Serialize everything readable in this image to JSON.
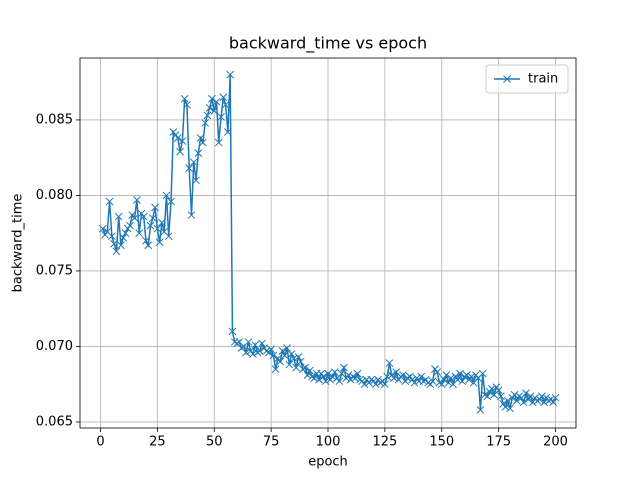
{
  "chart_data": {
    "type": "line",
    "title": "backward_time vs epoch",
    "x_label": "epoch",
    "y_label": "backward_time",
    "xlim": [
      -9,
      209
    ],
    "xticks": [
      0,
      25,
      50,
      75,
      100,
      125,
      150,
      175,
      200
    ],
    "ylim": [
      0.0646,
      0.0891
    ],
    "yticks": [
      0.065,
      {
        "value": 0.07,
        "label": "0.070"
      },
      0.075,
      {
        "value": 0.08,
        "label": "0.080"
      },
      0.085
    ],
    "grid": true,
    "legend": "upper right",
    "x": [
      1,
      2,
      3,
      4,
      5,
      6,
      7,
      8,
      9,
      10,
      11,
      12,
      13,
      14,
      15,
      16,
      17,
      18,
      19,
      20,
      21,
      22,
      23,
      24,
      25,
      26,
      27,
      28,
      29,
      30,
      31,
      32,
      33,
      34,
      35,
      36,
      37,
      38,
      39,
      40,
      41,
      42,
      43,
      44,
      45,
      46,
      47,
      48,
      49,
      50,
      51,
      52,
      53,
      54,
      55,
      56,
      57,
      58,
      59,
      60,
      61,
      62,
      63,
      64,
      65,
      66,
      67,
      68,
      69,
      70,
      71,
      72,
      73,
      74,
      75,
      76,
      77,
      78,
      79,
      80,
      81,
      82,
      83,
      84,
      85,
      86,
      87,
      88,
      89,
      90,
      91,
      92,
      93,
      94,
      95,
      96,
      97,
      98,
      99,
      100,
      101,
      102,
      103,
      104,
      105,
      106,
      107,
      108,
      109,
      110,
      111,
      112,
      113,
      114,
      115,
      116,
      117,
      118,
      119,
      120,
      121,
      122,
      123,
      124,
      125,
      126,
      127,
      128,
      129,
      130,
      131,
      132,
      133,
      134,
      135,
      136,
      137,
      138,
      139,
      140,
      141,
      142,
      143,
      144,
      145,
      146,
      147,
      148,
      149,
      150,
      151,
      152,
      153,
      154,
      155,
      156,
      157,
      158,
      159,
      160,
      161,
      162,
      163,
      164,
      165,
      166,
      167,
      168,
      169,
      170,
      171,
      172,
      173,
      174,
      175,
      176,
      177,
      178,
      179,
      180,
      181,
      182,
      183,
      184,
      185,
      186,
      187,
      188,
      189,
      190,
      191,
      192,
      193,
      194,
      195,
      196,
      197,
      198,
      199,
      200
    ],
    "series": [
      {
        "name": "train",
        "color": "#1f77b4",
        "values": [
          0.0778,
          0.0774,
          0.0776,
          0.0796,
          0.0773,
          0.0768,
          0.0763,
          0.0786,
          0.0767,
          0.0772,
          0.0775,
          0.0778,
          0.078,
          0.0787,
          0.0785,
          0.0797,
          0.0775,
          0.0788,
          0.0786,
          0.077,
          0.0767,
          0.078,
          0.0785,
          0.0792,
          0.0778,
          0.0769,
          0.0782,
          0.0776,
          0.08,
          0.0773,
          0.0796,
          0.0842,
          0.084,
          0.0838,
          0.0829,
          0.0836,
          0.0864,
          0.086,
          0.0818,
          0.0787,
          0.0822,
          0.081,
          0.0828,
          0.0838,
          0.0835,
          0.0848,
          0.0853,
          0.0858,
          0.0864,
          0.0856,
          0.0862,
          0.0835,
          0.0852,
          0.0865,
          0.086,
          0.0842,
          0.088,
          0.071,
          0.0703,
          0.0702,
          0.0703,
          0.0699,
          0.07,
          0.0696,
          0.0703,
          0.0697,
          0.0695,
          0.0701,
          0.0696,
          0.0697,
          0.0702,
          0.0699,
          0.0697,
          0.0696,
          0.0698,
          0.0694,
          0.0685,
          0.0692,
          0.069,
          0.0697,
          0.0694,
          0.0699,
          0.0688,
          0.0695,
          0.0692,
          0.0686,
          0.0693,
          0.069,
          0.0685,
          0.0686,
          0.0681,
          0.0684,
          0.068,
          0.0679,
          0.0682,
          0.0678,
          0.0682,
          0.068,
          0.0677,
          0.0682,
          0.0678,
          0.068,
          0.0683,
          0.0679,
          0.0677,
          0.0682,
          0.0686,
          0.0679,
          0.0681,
          0.0678,
          0.068,
          0.0679,
          0.0682,
          0.0678,
          0.0677,
          0.0675,
          0.0678,
          0.0676,
          0.0678,
          0.0677,
          0.0675,
          0.0678,
          0.0676,
          0.0677,
          0.0675,
          0.068,
          0.0689,
          0.0681,
          0.0679,
          0.0683,
          0.0678,
          0.068,
          0.0681,
          0.0677,
          0.0679,
          0.068,
          0.0678,
          0.0676,
          0.0679,
          0.0677,
          0.068,
          0.0677,
          0.0678,
          0.0676,
          0.0675,
          0.0677,
          0.0685,
          0.0683,
          0.0676,
          0.0675,
          0.0678,
          0.0681,
          0.0676,
          0.0679,
          0.0675,
          0.068,
          0.0678,
          0.0682,
          0.0677,
          0.068,
          0.0681,
          0.0678,
          0.068,
          0.0676,
          0.0681,
          0.0679,
          0.0658,
          0.0682,
          0.0668,
          0.0667,
          0.067,
          0.0672,
          0.0668,
          0.0673,
          0.0671,
          0.0667,
          0.0662,
          0.066,
          0.0664,
          0.0659,
          0.0666,
          0.0668,
          0.0664,
          0.0667,
          0.0666,
          0.0663,
          0.0669,
          0.0665,
          0.0667,
          0.0663,
          0.0666,
          0.0664,
          0.0665,
          0.0667,
          0.0663,
          0.0666,
          0.0664,
          0.0665,
          0.0663,
          0.0666
        ]
      }
    ]
  }
}
